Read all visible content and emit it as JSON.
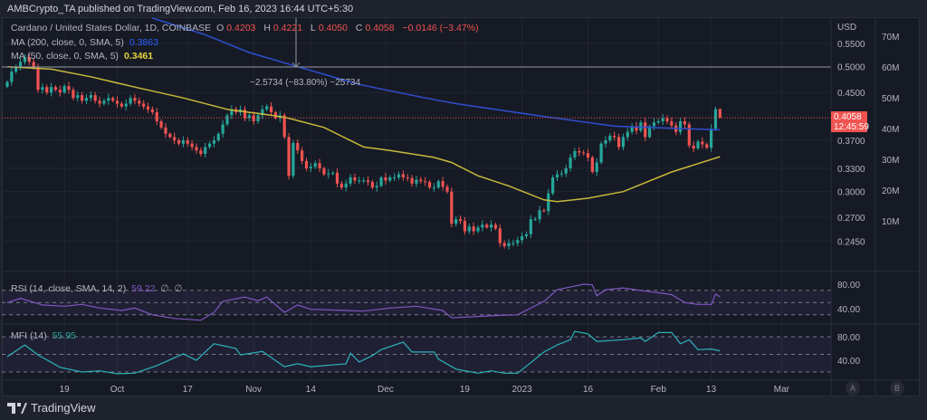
{
  "header": {
    "published": "AMBCrypto_TA published on TradingView.com, Feb 16, 2023 16:44 UTC+5:30"
  },
  "legend": {
    "symbol": "Cardano / United States Dollar, 1D, COINBASE",
    "o_label": "O",
    "o": "0.4203",
    "h_label": "H",
    "h": "0.4221",
    "l_label": "L",
    "l": "0.4050",
    "c_label": "C",
    "c": "0.4058",
    "change": "−0.0146 (−3.47%)",
    "ma200_label": "MA (200, close, 0, SMA, 5)",
    "ma200_value": "0.3863",
    "ma50_label": "MA (50, close, 0, SMA, 5)",
    "ma50_value": "0.3461",
    "rsi_label": "RSI (14, close, SMA, 14, 2)",
    "rsi_value": "59.22",
    "rsi_extra1": "∅",
    "rsi_extra2": "∅",
    "mfi_label": "MFI (14)",
    "mfi_value": "55.95"
  },
  "measurement": "−2.5734 (−83.80%) −25734",
  "last_price": {
    "value": "0.4058",
    "countdown": "12:45:59"
  },
  "colors": {
    "up": "#26a69a",
    "down": "#ef5350",
    "ma200": "#2f4fd0",
    "ma50": "#c8b93a",
    "rsi": "#7e57c2",
    "mfi": "#2bb3b8",
    "last_price": "#f05350"
  },
  "footer": {
    "brand": "TradingView"
  },
  "scale_buttons": [
    "A",
    "B"
  ],
  "chart_data": {
    "type": "candlestick",
    "title": "",
    "price_axis": {
      "unit": "USD",
      "scale": "log",
      "ticks": [
        "0.5500",
        "0.5000",
        "0.4500",
        "0.3700",
        "0.3300",
        "0.3000",
        "0.2700",
        "0.2450"
      ]
    },
    "volume_axis": {
      "ticks": [
        "70M",
        "60M",
        "50M",
        "40M",
        "30M",
        "20M",
        "10M"
      ]
    },
    "x_ticks": [
      {
        "label": "19",
        "date": "2022-09-19"
      },
      {
        "label": "Oct",
        "date": "2022-10-01"
      },
      {
        "label": "17",
        "date": "2022-10-17"
      },
      {
        "label": "Nov",
        "date": "2022-11-01"
      },
      {
        "label": "14",
        "date": "2022-11-14"
      },
      {
        "label": "Dec",
        "date": "2022-12-01"
      },
      {
        "label": "19",
        "date": "2022-12-19"
      },
      {
        "label": "2023",
        "date": "2023-01-01"
      },
      {
        "label": "16",
        "date": "2023-01-16"
      },
      {
        "label": "Feb",
        "date": "2023-02-01"
      },
      {
        "label": "13",
        "date": "2023-02-13"
      },
      {
        "label": "Mar",
        "date": "2023-03-01"
      }
    ],
    "crosshair_price": "0.5000",
    "start_date": "2022-09-06",
    "closes": [
      0.47,
      0.49,
      0.5,
      0.51,
      0.52,
      0.51,
      0.5,
      0.455,
      0.46,
      0.45,
      0.46,
      0.455,
      0.45,
      0.462,
      0.455,
      0.44,
      0.445,
      0.435,
      0.44,
      0.445,
      0.435,
      0.43,
      0.435,
      0.44,
      0.435,
      0.43,
      0.425,
      0.43,
      0.44,
      0.435,
      0.43,
      0.425,
      0.42,
      0.415,
      0.4,
      0.39,
      0.38,
      0.375,
      0.37,
      0.365,
      0.37,
      0.365,
      0.36,
      0.355,
      0.35,
      0.36,
      0.365,
      0.37,
      0.38,
      0.395,
      0.41,
      0.42,
      0.415,
      0.42,
      0.405,
      0.41,
      0.4,
      0.41,
      0.42,
      0.425,
      0.415,
      0.405,
      0.41,
      0.375,
      0.32,
      0.366,
      0.355,
      0.34,
      0.33,
      0.332,
      0.337,
      0.33,
      0.322,
      0.323,
      0.324,
      0.31,
      0.305,
      0.31,
      0.318,
      0.314,
      0.314,
      0.314,
      0.312,
      0.305,
      0.307,
      0.318,
      0.314,
      0.318,
      0.318,
      0.322,
      0.318,
      0.317,
      0.31,
      0.315,
      0.313,
      0.312,
      0.305,
      0.305,
      0.313,
      0.306,
      0.3,
      0.263,
      0.268,
      0.266,
      0.255,
      0.26,
      0.255,
      0.259,
      0.262,
      0.259,
      0.262,
      0.258,
      0.243,
      0.24,
      0.243,
      0.243,
      0.246,
      0.25,
      0.252,
      0.268,
      0.268,
      0.278,
      0.277,
      0.298,
      0.318,
      0.322,
      0.323,
      0.33,
      0.345,
      0.354,
      0.352,
      0.351,
      0.345,
      0.325,
      0.338,
      0.365,
      0.37,
      0.377,
      0.375,
      0.36,
      0.375,
      0.383,
      0.392,
      0.385,
      0.398,
      0.375,
      0.392,
      0.398,
      0.4,
      0.405,
      0.4,
      0.393,
      0.383,
      0.4,
      0.395,
      0.362,
      0.358,
      0.368,
      0.364,
      0.359,
      0.388,
      0.4203,
      0.4058
    ],
    "last_candle": {
      "open": 0.4203,
      "high": 0.4221,
      "low": 0.405,
      "close": 0.4058
    },
    "ma200": [
      [
        "2022-10-09",
        0.61
      ],
      [
        "2022-10-21",
        0.57
      ],
      [
        "2022-10-31",
        0.53
      ],
      [
        "2022-11-11",
        0.5
      ],
      [
        "2022-11-25",
        0.465
      ],
      [
        "2022-12-10",
        0.44
      ],
      [
        "2022-12-17",
        0.43
      ],
      [
        "2023-01-04",
        0.41
      ],
      [
        "2023-01-22",
        0.392
      ],
      [
        "2023-02-03",
        0.389
      ],
      [
        "2023-02-15",
        0.3863
      ]
    ],
    "ma50": [
      [
        "2022-09-06",
        0.5
      ],
      [
        "2022-09-16",
        0.495
      ],
      [
        "2022-09-25",
        0.48
      ],
      [
        "2022-10-05",
        0.46
      ],
      [
        "2022-10-16",
        0.44
      ],
      [
        "2022-10-26",
        0.42
      ],
      [
        "2022-11-05",
        0.41
      ],
      [
        "2022-11-09",
        0.405
      ],
      [
        "2022-11-17",
        0.39
      ],
      [
        "2022-11-26",
        0.36
      ],
      [
        "2022-12-02",
        0.355
      ],
      [
        "2022-12-12",
        0.345
      ],
      [
        "2022-12-16",
        0.338
      ],
      [
        "2022-12-22",
        0.32
      ],
      [
        "2022-12-29",
        0.307
      ],
      [
        "2023-01-06",
        0.29
      ],
      [
        "2023-01-09",
        0.288
      ],
      [
        "2023-01-16",
        0.292
      ],
      [
        "2023-01-24",
        0.3
      ],
      [
        "2023-02-04",
        0.325
      ],
      [
        "2023-02-15",
        0.3461
      ]
    ],
    "rsi": {
      "ticks": [
        "80.00",
        "40.00"
      ],
      "bands": [
        70,
        50,
        30
      ],
      "points": [
        [
          "2022-09-06",
          50
        ],
        [
          "2022-09-09",
          57
        ],
        [
          "2022-09-14",
          46
        ],
        [
          "2022-09-19",
          44
        ],
        [
          "2022-09-23",
          47
        ],
        [
          "2022-09-27",
          41
        ],
        [
          "2022-10-02",
          37
        ],
        [
          "2022-10-05",
          41
        ],
        [
          "2022-10-09",
          30
        ],
        [
          "2022-10-14",
          24
        ],
        [
          "2022-10-20",
          21
        ],
        [
          "2022-10-23",
          34
        ],
        [
          "2022-10-25",
          52
        ],
        [
          "2022-10-30",
          59
        ],
        [
          "2022-11-02",
          53
        ],
        [
          "2022-11-04",
          59
        ],
        [
          "2022-11-08",
          34
        ],
        [
          "2022-11-11",
          46
        ],
        [
          "2022-11-14",
          39
        ],
        [
          "2022-11-26",
          36
        ],
        [
          "2022-12-02",
          41
        ],
        [
          "2022-12-08",
          44
        ],
        [
          "2022-12-14",
          37
        ],
        [
          "2022-12-16",
          25
        ],
        [
          "2022-12-27",
          29
        ],
        [
          "2022-12-31",
          30
        ],
        [
          "2023-01-06",
          52
        ],
        [
          "2023-01-09",
          71
        ],
        [
          "2023-01-15",
          80
        ],
        [
          "2023-01-17",
          79
        ],
        [
          "2023-01-18",
          61
        ],
        [
          "2023-01-20",
          71
        ],
        [
          "2023-01-24",
          74
        ],
        [
          "2023-01-31",
          67
        ],
        [
          "2023-02-04",
          63
        ],
        [
          "2023-02-07",
          50
        ],
        [
          "2023-02-10",
          47
        ],
        [
          "2023-02-13",
          47
        ],
        [
          "2023-02-14",
          64
        ],
        [
          "2023-02-15",
          59.22
        ]
      ]
    },
    "mfi": {
      "ticks": [
        "80.00",
        "40.00"
      ],
      "bands": [
        80,
        50,
        20
      ],
      "points": [
        [
          "2022-09-06",
          46
        ],
        [
          "2022-09-10",
          66
        ],
        [
          "2022-09-13",
          49
        ],
        [
          "2022-09-18",
          28
        ],
        [
          "2022-09-23",
          20
        ],
        [
          "2022-09-27",
          22
        ],
        [
          "2022-10-01",
          17
        ],
        [
          "2022-10-05",
          18
        ],
        [
          "2022-10-10",
          31
        ],
        [
          "2022-10-16",
          51
        ],
        [
          "2022-10-19",
          40
        ],
        [
          "2022-10-23",
          68
        ],
        [
          "2022-10-28",
          60
        ],
        [
          "2022-10-29",
          49
        ],
        [
          "2022-11-03",
          55
        ],
        [
          "2022-11-08",
          29
        ],
        [
          "2022-11-11",
          34
        ],
        [
          "2022-11-14",
          29
        ],
        [
          "2022-11-22",
          34
        ],
        [
          "2022-11-23",
          52
        ],
        [
          "2022-11-25",
          37
        ],
        [
          "2022-11-28",
          48
        ],
        [
          "2022-11-30",
          58
        ],
        [
          "2022-12-05",
          71
        ],
        [
          "2022-12-07",
          54
        ],
        [
          "2022-12-12",
          54
        ],
        [
          "2022-12-13",
          42
        ],
        [
          "2022-12-17",
          25
        ],
        [
          "2022-12-22",
          18
        ],
        [
          "2022-12-25",
          22
        ],
        [
          "2022-12-28",
          18
        ],
        [
          "2022-12-31",
          18
        ],
        [
          "2023-01-04",
          42
        ],
        [
          "2023-01-06",
          54
        ],
        [
          "2023-01-09",
          66
        ],
        [
          "2023-01-12",
          75
        ],
        [
          "2023-01-13",
          89
        ],
        [
          "2023-01-16",
          85
        ],
        [
          "2023-01-18",
          72
        ],
        [
          "2023-01-24",
          75
        ],
        [
          "2023-01-28",
          78
        ],
        [
          "2023-01-29",
          72
        ],
        [
          "2023-02-01",
          87
        ],
        [
          "2023-02-04",
          87
        ],
        [
          "2023-02-06",
          68
        ],
        [
          "2023-02-08",
          75
        ],
        [
          "2023-02-10",
          58
        ],
        [
          "2023-02-13",
          59
        ],
        [
          "2023-02-15",
          55.95
        ]
      ]
    }
  }
}
